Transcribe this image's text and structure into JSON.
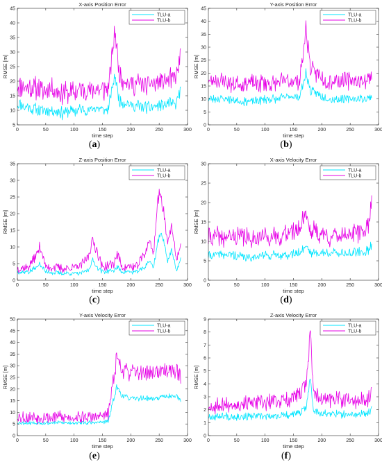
{
  "figure": {
    "panels": [
      {
        "letter": "(a)",
        "title": "X-axis Position Error"
      },
      {
        "letter": "(b)",
        "title": "Y-axis Position Error"
      },
      {
        "letter": "(c)",
        "title": "Z-axis Position Error"
      },
      {
        "letter": "(d)",
        "title": "X-axis Velocity Error"
      },
      {
        "letter": "(e)",
        "title": "Y-axis Velocity Error"
      },
      {
        "letter": "(f)",
        "title": "Z-axis Velocity Error"
      }
    ]
  },
  "colors": {
    "series_a": "#00e5ff",
    "series_b": "#e600e6",
    "axis": "#262626",
    "frame": "#ffffff"
  },
  "chart_data": [
    {
      "type": "line",
      "letter": "(a)",
      "title": "X-axis Position Error",
      "xlabel": "time step",
      "ylabel": "RMSE [m]",
      "xlim": [
        0,
        300
      ],
      "ylim": [
        5,
        45
      ],
      "xticks": [
        0,
        50,
        100,
        150,
        200,
        250,
        300
      ],
      "yticks": [
        5,
        10,
        15,
        20,
        25,
        30,
        35,
        40,
        45
      ],
      "legend": "top-right",
      "grid": false,
      "noise_seed": 11,
      "series": [
        {
          "name": "TLU-a",
          "color": "#00e5ff",
          "x": [
            0,
            20,
            40,
            60,
            80,
            100,
            120,
            140,
            160,
            168,
            172,
            180,
            200,
            220,
            240,
            260,
            280,
            288
          ],
          "y": [
            12,
            11,
            10,
            10,
            9,
            10,
            10,
            11,
            10,
            18,
            22,
            13,
            12,
            11,
            11,
            12,
            12,
            17
          ],
          "spread": 2.5
        },
        {
          "name": "TLU-b",
          "color": "#e600e6",
          "x": [
            0,
            20,
            40,
            60,
            80,
            100,
            120,
            140,
            160,
            168,
            172,
            180,
            200,
            220,
            240,
            260,
            280,
            288
          ],
          "y": [
            18,
            18,
            17,
            17,
            16,
            16,
            17,
            17,
            17,
            30,
            38,
            22,
            19,
            19,
            19,
            20,
            21,
            30
          ],
          "spread": 4.5
        }
      ]
    },
    {
      "type": "line",
      "letter": "(b)",
      "title": "Y-axis Position Error",
      "xlabel": "time step",
      "ylabel": "RMSE [m]",
      "xlim": [
        0,
        300
      ],
      "ylim": [
        0,
        45
      ],
      "xticks": [
        0,
        50,
        100,
        150,
        200,
        250,
        300
      ],
      "yticks": [
        0,
        5,
        10,
        15,
        20,
        25,
        30,
        35,
        40,
        45
      ],
      "legend": "top-right",
      "grid": false,
      "noise_seed": 23,
      "series": [
        {
          "name": "TLU-a",
          "color": "#00e5ff",
          "x": [
            0,
            20,
            40,
            60,
            80,
            100,
            120,
            140,
            160,
            168,
            172,
            180,
            200,
            220,
            240,
            260,
            280,
            288
          ],
          "y": [
            10,
            10,
            10,
            9,
            9,
            10,
            10,
            11,
            11,
            16,
            20,
            13,
            11,
            10,
            10,
            10,
            10,
            11
          ],
          "spread": 2.0
        },
        {
          "name": "TLU-b",
          "color": "#e600e6",
          "x": [
            0,
            20,
            40,
            60,
            80,
            100,
            120,
            140,
            160,
            168,
            172,
            180,
            200,
            220,
            240,
            260,
            280,
            288
          ],
          "y": [
            17,
            17,
            16,
            16,
            16,
            16,
            16,
            17,
            17,
            28,
            38,
            22,
            18,
            17,
            17,
            17,
            17,
            19
          ],
          "spread": 4.0
        }
      ]
    },
    {
      "type": "line",
      "letter": "(c)",
      "title": "Z-axis Position Error",
      "xlabel": "time step",
      "ylabel": "RMSE [m]",
      "xlim": [
        0,
        300
      ],
      "ylim": [
        0,
        35
      ],
      "xticks": [
        0,
        50,
        100,
        150,
        200,
        250,
        300
      ],
      "yticks": [
        0,
        5,
        10,
        15,
        20,
        25,
        30,
        35
      ],
      "legend": "top-right",
      "grid": false,
      "noise_seed": 37,
      "series": [
        {
          "name": "TLU-a",
          "color": "#00e5ff",
          "x": [
            0,
            20,
            35,
            40,
            50,
            80,
            110,
            125,
            133,
            140,
            150,
            170,
            176,
            185,
            210,
            225,
            232,
            240,
            248,
            255,
            265,
            272,
            280,
            288
          ],
          "y": [
            2.5,
            2.5,
            4,
            5,
            2.5,
            2,
            2,
            3,
            6,
            4,
            2.5,
            3,
            4,
            2.5,
            2.5,
            4,
            6,
            4,
            12,
            14,
            6,
            9,
            3,
            6
          ],
          "spread": 0.8
        },
        {
          "name": "TLU-b",
          "color": "#e600e6",
          "x": [
            0,
            20,
            35,
            40,
            50,
            80,
            110,
            125,
            133,
            140,
            150,
            170,
            176,
            185,
            210,
            225,
            232,
            240,
            248,
            255,
            265,
            272,
            280,
            288
          ],
          "y": [
            3.5,
            4,
            8,
            10,
            4,
            3.5,
            4,
            7,
            12,
            9,
            4,
            5,
            8,
            4,
            4,
            8,
            12,
            8,
            25,
            24,
            12,
            16,
            6,
            10
          ],
          "spread": 1.5
        }
      ]
    },
    {
      "type": "line",
      "letter": "(d)",
      "title": "X-axis Velocity Error",
      "xlabel": "time step",
      "ylabel": "RMSE [m]",
      "xlim": [
        0,
        300
      ],
      "ylim": [
        0,
        30
      ],
      "xticks": [
        0,
        50,
        100,
        150,
        200,
        250,
        300
      ],
      "yticks": [
        0,
        5,
        10,
        15,
        20,
        25,
        30
      ],
      "legend": "top-right",
      "grid": false,
      "noise_seed": 41,
      "series": [
        {
          "name": "TLU-a",
          "color": "#00e5ff",
          "x": [
            0,
            20,
            40,
            60,
            80,
            100,
            120,
            140,
            160,
            172,
            180,
            200,
            220,
            240,
            260,
            280,
            288
          ],
          "y": [
            6.5,
            6.5,
            6.5,
            6,
            6,
            6.5,
            6.5,
            6.5,
            7,
            9,
            7,
            7,
            7,
            7,
            7,
            7.5,
            9
          ],
          "spread": 1.4
        },
        {
          "name": "TLU-b",
          "color": "#e600e6",
          "x": [
            0,
            20,
            40,
            60,
            80,
            100,
            120,
            140,
            160,
            172,
            180,
            200,
            220,
            240,
            260,
            280,
            288
          ],
          "y": [
            11,
            11,
            11,
            11,
            11,
            11,
            11,
            12,
            13,
            18,
            13,
            12,
            11,
            12,
            12,
            13,
            20
          ],
          "spread": 3.0
        }
      ]
    },
    {
      "type": "line",
      "letter": "(e)",
      "title": "Y-axis Velocity Error",
      "xlabel": "time step",
      "ylabel": "RMSE [m]",
      "xlim": [
        0,
        300
      ],
      "ylim": [
        0,
        50
      ],
      "xticks": [
        0,
        50,
        100,
        150,
        200,
        250,
        300
      ],
      "yticks": [
        0,
        5,
        10,
        15,
        20,
        25,
        30,
        35,
        40,
        45,
        50
      ],
      "legend": "top-right",
      "grid": false,
      "noise_seed": 53,
      "series": [
        {
          "name": "TLU-a",
          "color": "#00e5ff",
          "x": [
            0,
            20,
            40,
            60,
            80,
            100,
            120,
            140,
            160,
            168,
            175,
            185,
            200,
            220,
            240,
            260,
            280,
            288
          ],
          "y": [
            5.5,
            5.5,
            5.5,
            5.5,
            5.5,
            5.5,
            5.5,
            5.5,
            6,
            14,
            21,
            17,
            16,
            16,
            16,
            17,
            17,
            15
          ],
          "spread": 1.0
        },
        {
          "name": "TLU-b",
          "color": "#e600e6",
          "x": [
            0,
            20,
            40,
            60,
            80,
            100,
            120,
            140,
            160,
            168,
            175,
            185,
            200,
            220,
            240,
            260,
            280,
            288
          ],
          "y": [
            8,
            8,
            8,
            8,
            8,
            8,
            8,
            8,
            9,
            22,
            34,
            28,
            27,
            27,
            27,
            28,
            28,
            25
          ],
          "spread": 3.2
        }
      ]
    },
    {
      "type": "line",
      "letter": "(f)",
      "title": "Z-axis Velocity Error",
      "xlabel": "time step",
      "ylabel": "RMSE [m]",
      "xlim": [
        0,
        300
      ],
      "ylim": [
        0,
        9
      ],
      "xticks": [
        0,
        50,
        100,
        150,
        200,
        250,
        300
      ],
      "yticks": [
        0,
        1,
        2,
        3,
        4,
        5,
        6,
        7,
        8,
        9
      ],
      "legend": "top-right",
      "grid": false,
      "noise_seed": 67,
      "series": [
        {
          "name": "TLU-a",
          "color": "#00e5ff",
          "x": [
            0,
            20,
            40,
            60,
            80,
            100,
            120,
            140,
            160,
            172,
            180,
            185,
            200,
            220,
            240,
            260,
            280,
            288
          ],
          "y": [
            1.5,
            1.5,
            1.5,
            1.5,
            1.5,
            1.5,
            1.5,
            1.6,
            1.7,
            2.2,
            4.5,
            2.0,
            1.7,
            1.7,
            1.6,
            1.6,
            1.7,
            2.0
          ],
          "spread": 0.35
        },
        {
          "name": "TLU-b",
          "color": "#e600e6",
          "x": [
            0,
            20,
            40,
            60,
            80,
            100,
            120,
            140,
            160,
            172,
            180,
            185,
            200,
            220,
            240,
            260,
            280,
            288
          ],
          "y": [
            2.2,
            2.3,
            2.5,
            2.5,
            2.5,
            2.5,
            2.6,
            2.8,
            3.0,
            4.0,
            8.0,
            3.5,
            2.8,
            2.8,
            2.7,
            2.7,
            2.7,
            3.5
          ],
          "spread": 0.7
        }
      ]
    }
  ]
}
